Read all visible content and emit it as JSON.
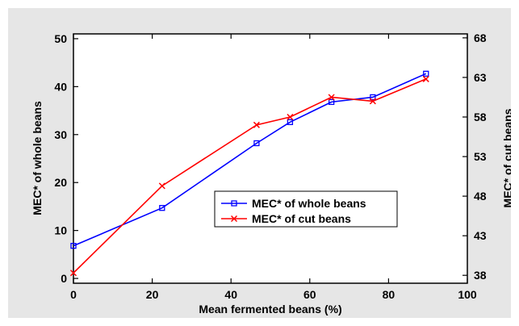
{
  "chart_data": {
    "type": "line",
    "title": "",
    "xlabel": "Mean fermented beans (%)",
    "ylabel_left": "MEC* of whole beans",
    "ylabel_right": "MEC* of cut beans",
    "xlim": [
      0,
      100
    ],
    "xticks": [
      0,
      20,
      40,
      60,
      80,
      100
    ],
    "ylim_left": [
      -1,
      51
    ],
    "yticks_left": [
      0,
      10,
      20,
      30,
      40,
      50
    ],
    "ylim_right": [
      37,
      68.5
    ],
    "yticks_right": [
      38,
      43,
      48,
      53,
      58,
      63,
      68
    ],
    "grid": false,
    "legend_position": "center-right",
    "series": [
      {
        "name": "MEC* of whole beans",
        "axis": "left",
        "color": "#0000ff",
        "marker": "square",
        "x": [
          0,
          22.5,
          46.5,
          55,
          65.5,
          76,
          89.5
        ],
        "y": [
          6.8,
          14.7,
          28.2,
          32.6,
          36.8,
          37.8,
          42.7
        ]
      },
      {
        "name": "MEC* of cut beans",
        "axis": "right",
        "color": "#ff0000",
        "marker": "x",
        "x": [
          0,
          22.5,
          46.5,
          55,
          65.5,
          76,
          89.5
        ],
        "y": [
          38.3,
          49.3,
          57.0,
          58.0,
          60.5,
          60.0,
          62.8
        ]
      }
    ]
  }
}
